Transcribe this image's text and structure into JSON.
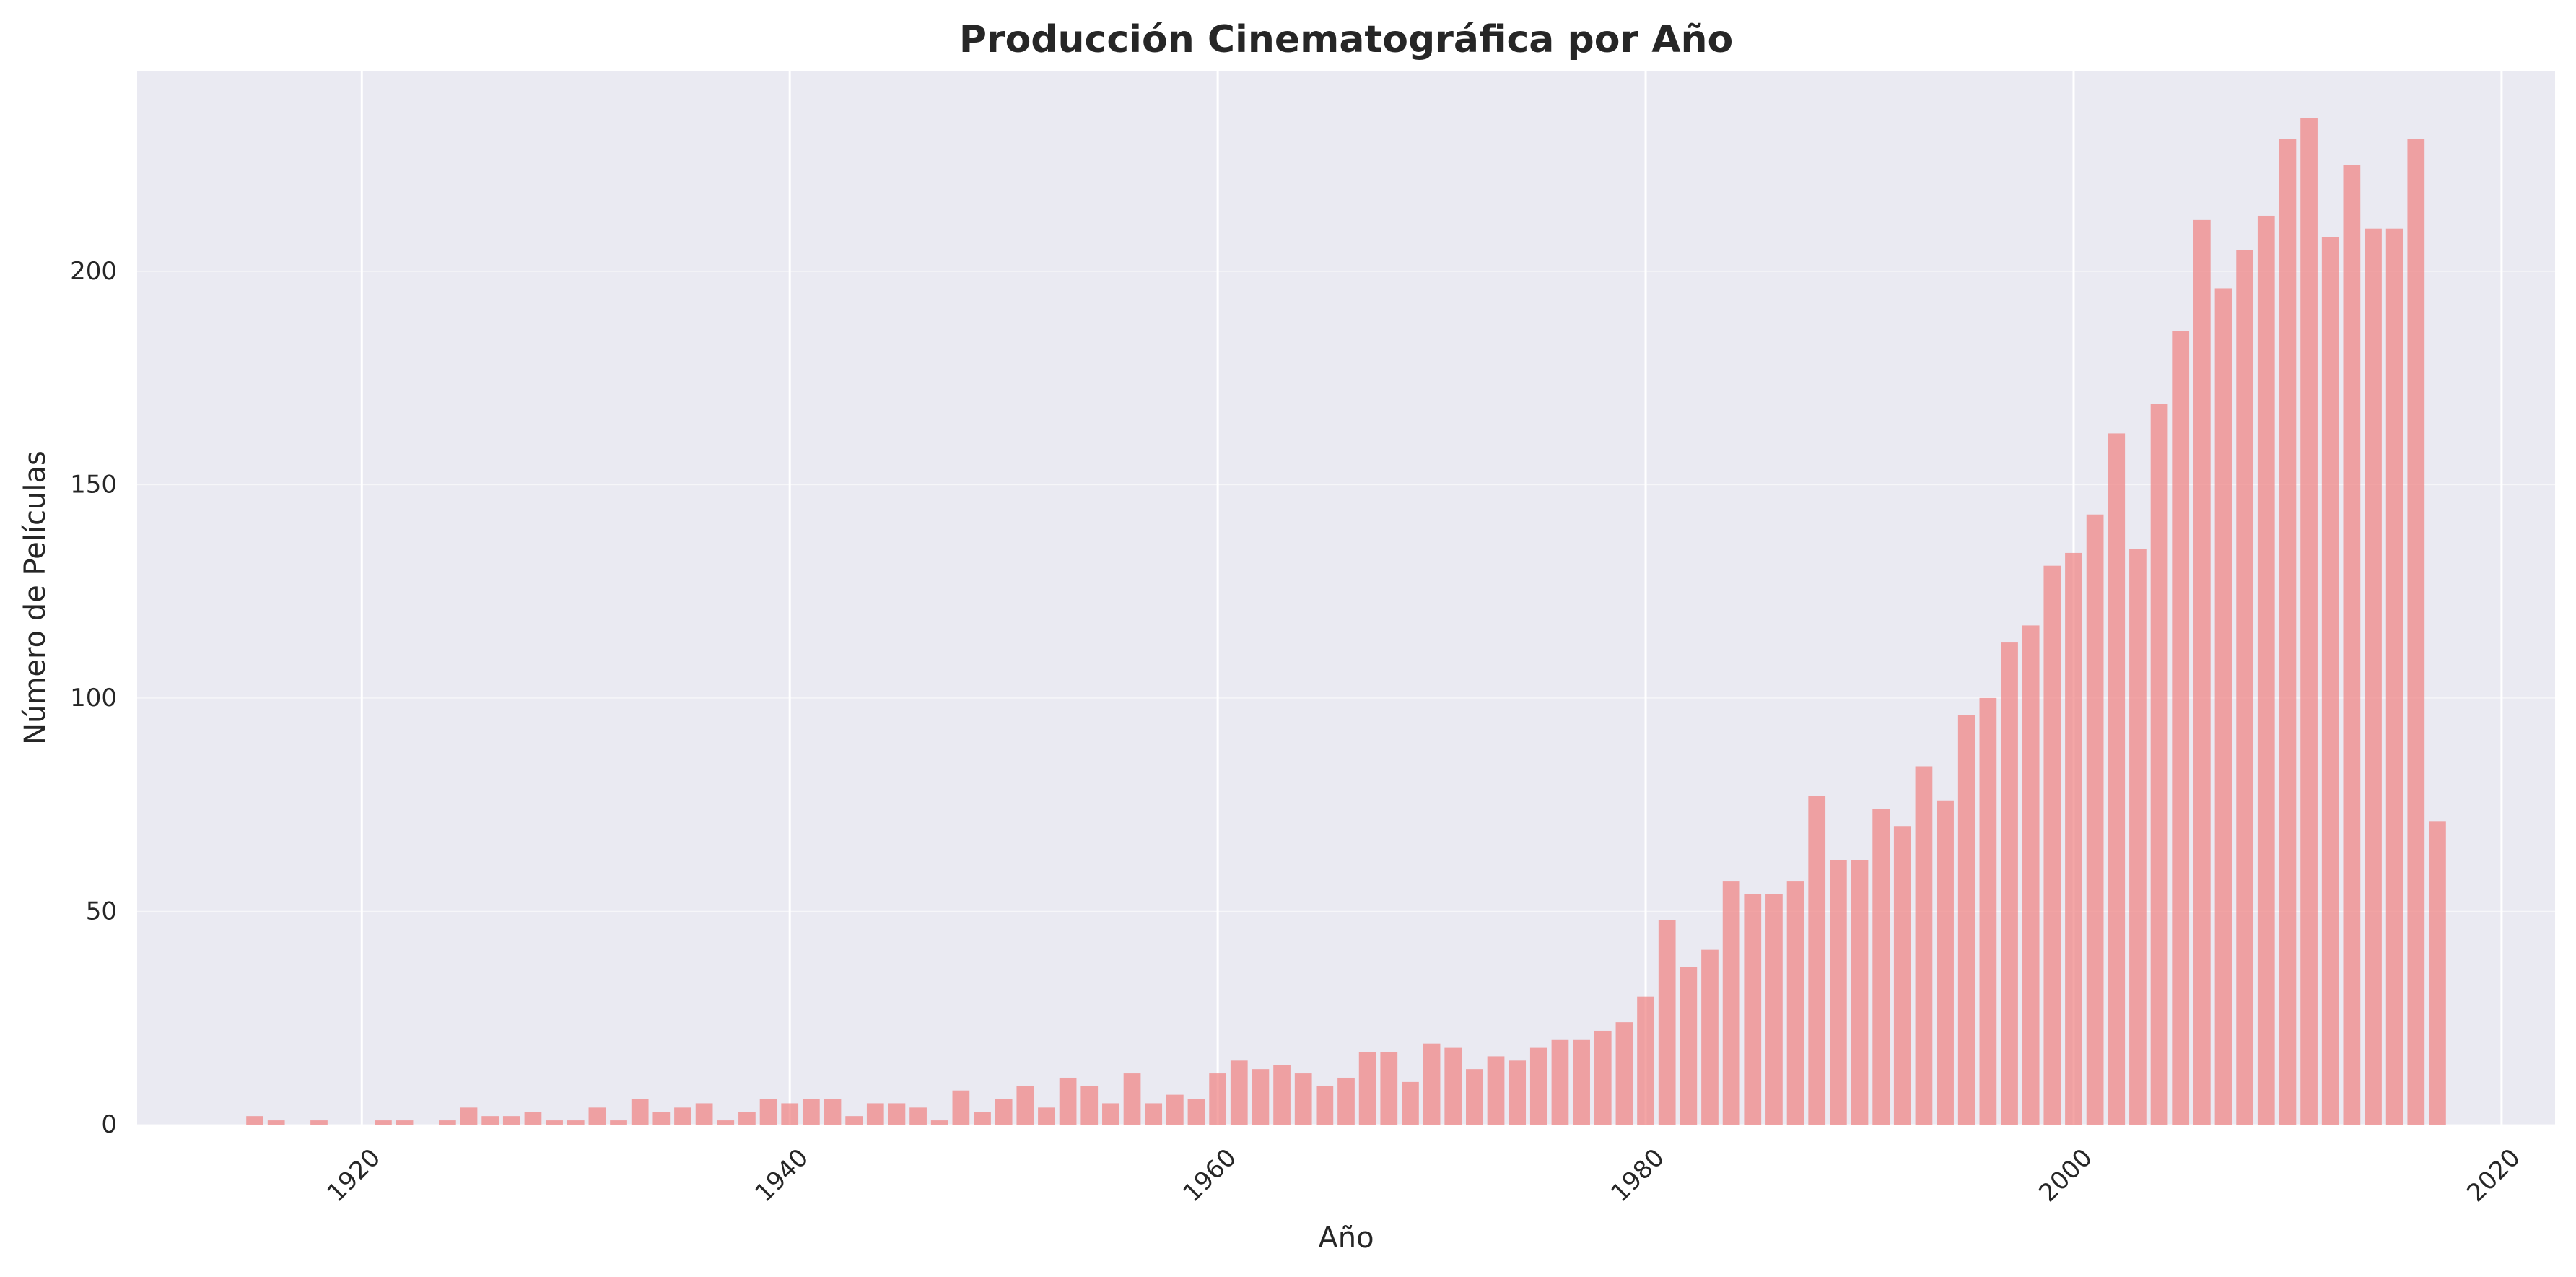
{
  "chart_data": {
    "type": "bar",
    "title": "Producción Cinematográfica por Año",
    "xlabel": "Año",
    "ylabel": "Número de Películas",
    "xlim": [
      1909.5,
      2022.5
    ],
    "ylim": [
      0,
      247
    ],
    "xticks": [
      1920,
      1940,
      1960,
      1980,
      2000,
      2020
    ],
    "yticks": [
      0,
      50,
      100,
      150,
      200
    ],
    "x_tick_rotation_deg": 45,
    "grid": true,
    "legend": "none",
    "colors": {
      "bar": "#f08080",
      "plot_background": "#eaeaf2",
      "grid": "#ffffff"
    },
    "series": [
      {
        "x": [
          1915,
          1916,
          1918,
          1921,
          1922,
          1924,
          1925,
          1926,
          1927,
          1928,
          1929,
          1930,
          1931,
          1932,
          1933,
          1934,
          1935,
          1936,
          1937,
          1938,
          1939,
          1940,
          1941,
          1942,
          1943,
          1944,
          1945,
          1946,
          1947,
          1948,
          1949,
          1950,
          1951,
          1952,
          1953,
          1954,
          1955,
          1956,
          1957,
          1958,
          1959,
          1960,
          1961,
          1962,
          1963,
          1964,
          1965,
          1966,
          1967,
          1968,
          1969,
          1970,
          1971,
          1972,
          1973,
          1974,
          1975,
          1976,
          1977,
          1978,
          1979,
          1980,
          1981,
          1982,
          1983,
          1984,
          1985,
          1986,
          1987,
          1988,
          1989,
          1990,
          1991,
          1992,
          1993,
          1994,
          1995,
          1996,
          1997,
          1998,
          1999,
          2000,
          2001,
          2002,
          2003,
          2004,
          2005,
          2006,
          2007,
          2008,
          2009,
          2010,
          2011,
          2012,
          2013,
          2014,
          2015,
          2016,
          2017
        ],
        "values": [
          2,
          1,
          1,
          1,
          1,
          1,
          4,
          2,
          2,
          3,
          1,
          1,
          4,
          1,
          6,
          3,
          4,
          5,
          1,
          3,
          6,
          5,
          6,
          6,
          2,
          5,
          5,
          4,
          1,
          8,
          3,
          6,
          9,
          4,
          11,
          9,
          5,
          12,
          5,
          7,
          6,
          12,
          15,
          13,
          14,
          12,
          9,
          11,
          17,
          17,
          10,
          19,
          18,
          13,
          16,
          15,
          18,
          20,
          20,
          22,
          24,
          30,
          48,
          37,
          41,
          57,
          54,
          54,
          57,
          77,
          62,
          62,
          74,
          70,
          84,
          76,
          96,
          100,
          113,
          117,
          131,
          134,
          143,
          162,
          135,
          169,
          186,
          212,
          196,
          205,
          213,
          231,
          236,
          208,
          225,
          210,
          210,
          231,
          71
        ]
      }
    ]
  }
}
